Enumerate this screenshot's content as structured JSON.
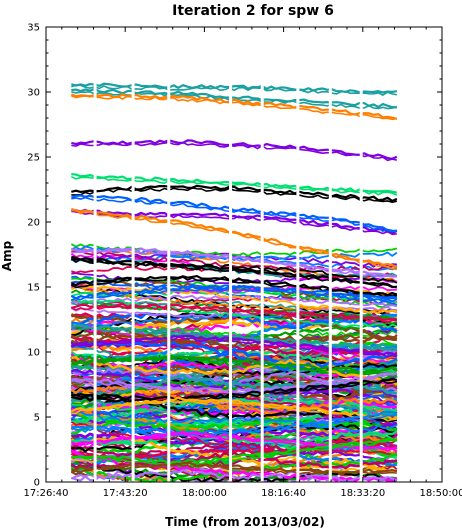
{
  "chart_data": {
    "type": "line",
    "title": "Iteration 2 for spw 6",
    "xlabel": "Time (from 2013/03/02)",
    "ylabel": "Amp",
    "xlim": [
      "17:26:40",
      "18:50:00"
    ],
    "ylim": [
      0,
      35
    ],
    "x_ticks": [
      "17:26:40",
      "17:43:20",
      "18:00:00",
      "18:16:40",
      "18:33:20",
      "18:50:00"
    ],
    "y_ticks": [
      0,
      5,
      10,
      15,
      20,
      25,
      30,
      35
    ],
    "grid": false,
    "legend": "none",
    "scan_boundaries": [
      "17:37:00",
      "17:45:00",
      "17:52:30",
      "18:05:30",
      "18:12:10",
      "18:19:40",
      "18:26:30",
      "18:33:00"
    ],
    "data_range": [
      "17:32:00",
      "18:40:30"
    ],
    "series_colors": [
      "#ff7f00",
      "#00a000",
      "#0060ff",
      "#7f00e0",
      "#e0004e",
      "#1aa0a0",
      "#00d000",
      "#ff00ff",
      "#000000",
      "#b070ff",
      "#ffb000",
      "#00e070",
      "#0080ff",
      "#8b4513",
      "#c00060"
    ],
    "series": [
      {
        "values": [
          30.6,
          30.5,
          30.4,
          30.4,
          30.3,
          30.1,
          30.0
        ],
        "color": "#1aa0a0"
      },
      {
        "values": [
          30.2,
          30.0,
          29.9,
          29.6,
          29.4,
          29.1,
          28.9
        ],
        "color": "#1aa0a0"
      },
      {
        "values": [
          29.8,
          29.7,
          29.6,
          29.3,
          28.9,
          28.5,
          28.0
        ],
        "color": "#ff7f00"
      },
      {
        "values": [
          26.1,
          26.1,
          26.2,
          26.0,
          25.8,
          25.4,
          24.9
        ],
        "color": "#7f00e0"
      },
      {
        "values": [
          23.6,
          23.4,
          23.2,
          23.0,
          22.8,
          22.5,
          22.3
        ],
        "color": "#00e070"
      },
      {
        "values": [
          22.3,
          22.6,
          22.7,
          22.6,
          22.3,
          22.0,
          21.7
        ],
        "color": "#000000"
      },
      {
        "values": [
          20.9,
          20.6,
          20.6,
          20.5,
          20.2,
          19.7,
          19.2
        ],
        "color": "#7f00e0"
      },
      {
        "values": [
          22.0,
          21.8,
          21.5,
          21.0,
          20.6,
          20.2,
          19.3
        ],
        "color": "#0060ff"
      },
      {
        "values": [
          21.0,
          20.5,
          20.0,
          19.2,
          18.3,
          17.4,
          16.5
        ],
        "color": "#ff7f00"
      },
      {
        "values": [
          17.8,
          17.9,
          17.7,
          17.3,
          16.8,
          16.3,
          15.9
        ],
        "color": "#b070ff"
      },
      {
        "values": [
          17.2,
          16.9,
          16.7,
          16.4,
          16.0,
          15.6,
          15.1
        ],
        "color": "#000000"
      },
      {
        "values": [
          15.2,
          15.6,
          15.8,
          15.6,
          15.2,
          14.8,
          14.4
        ],
        "color": "#000000"
      },
      {
        "values": [
          14.2,
          14.6,
          14.9,
          15.0,
          14.8,
          14.5,
          14.1
        ],
        "color": "#0060ff"
      },
      {
        "values": [
          13.5,
          13.6,
          13.5,
          13.3,
          13.0,
          12.8,
          12.5
        ],
        "color": "#e0004e"
      },
      {
        "values": [
          12.0,
          11.8,
          11.5,
          11.2,
          10.9,
          10.6,
          10.2
        ],
        "color": "#1aa0a0"
      },
      {
        "values": [
          10.5,
          10.9,
          11.2,
          11.0,
          10.6,
          10.2,
          9.8
        ],
        "color": "#7f00e0"
      },
      {
        "values": [
          9.2,
          9.5,
          9.6,
          9.4,
          9.0,
          8.7,
          8.3
        ],
        "color": "#00a000"
      },
      {
        "values": [
          8.0,
          7.6,
          7.2,
          7.0,
          7.3,
          7.8,
          8.4
        ],
        "color": "#b070ff"
      },
      {
        "values": [
          6.8,
          6.5,
          6.4,
          6.7,
          7.1,
          7.5,
          7.9
        ],
        "color": "#000000"
      },
      {
        "values": [
          5.5,
          6.0,
          6.4,
          6.2,
          5.8,
          5.3,
          4.9
        ],
        "color": "#ffb000"
      },
      {
        "values": [
          4.3,
          4.1,
          3.8,
          3.9,
          4.3,
          4.8,
          5.4
        ],
        "color": "#0080ff"
      },
      {
        "values": [
          3.0,
          3.4,
          3.8,
          3.5,
          3.1,
          2.8,
          2.6
        ],
        "color": "#ff00ff"
      },
      {
        "values": [
          2.0,
          1.8,
          1.5,
          1.9,
          2.4,
          2.9,
          3.3
        ],
        "color": "#00d000"
      },
      {
        "values": [
          1.0,
          1.2,
          1.4,
          1.2,
          0.9,
          0.8,
          0.9
        ],
        "color": "#8b4513"
      }
    ]
  }
}
